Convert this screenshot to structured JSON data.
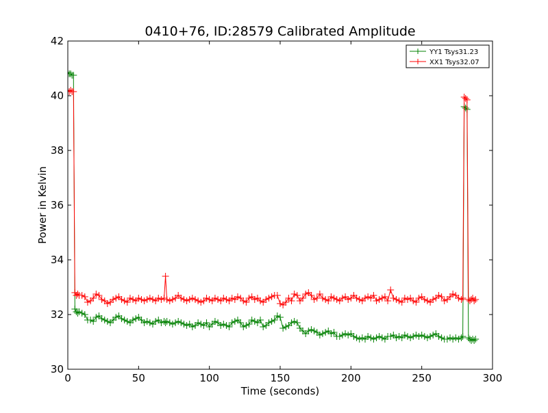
{
  "chart_data": {
    "type": "line",
    "title": "0410+76, ID:28579 Calibrated Amplitude",
    "xlabel": "Time (seconds)",
    "ylabel": "Power in Kelvin",
    "xlim": [
      0,
      300
    ],
    "ylim": [
      30,
      42
    ],
    "xticks": [
      0,
      50,
      100,
      150,
      200,
      250,
      300
    ],
    "yticks": [
      30,
      32,
      34,
      36,
      38,
      40,
      42
    ],
    "grid": false,
    "legend_position": "top-right",
    "marker": "+",
    "series": [
      {
        "name": "YY1 Tsys31.23",
        "color": "#008000",
        "x": [
          0,
          1,
          2,
          3,
          4,
          5,
          6,
          7,
          8,
          10,
          12,
          14,
          16,
          18,
          20,
          22,
          24,
          26,
          28,
          30,
          32,
          34,
          36,
          38,
          40,
          42,
          44,
          46,
          48,
          50,
          52,
          54,
          56,
          58,
          60,
          62,
          64,
          66,
          68,
          69,
          70,
          72,
          74,
          76,
          78,
          80,
          82,
          84,
          86,
          88,
          90,
          92,
          94,
          96,
          98,
          100,
          102,
          104,
          106,
          108,
          110,
          112,
          114,
          116,
          118,
          120,
          122,
          124,
          126,
          128,
          130,
          132,
          134,
          136,
          138,
          140,
          142,
          144,
          146,
          148,
          150,
          152,
          154,
          156,
          158,
          160,
          162,
          164,
          166,
          168,
          170,
          172,
          174,
          176,
          178,
          180,
          182,
          184,
          186,
          188,
          190,
          192,
          194,
          196,
          198,
          200,
          202,
          204,
          206,
          208,
          210,
          212,
          214,
          216,
          218,
          220,
          222,
          224,
          226,
          228,
          230,
          232,
          234,
          236,
          238,
          240,
          242,
          244,
          246,
          248,
          250,
          252,
          254,
          256,
          258,
          260,
          262,
          264,
          266,
          268,
          270,
          272,
          274,
          276,
          278,
          279,
          280,
          281,
          282,
          283,
          284,
          285,
          286,
          287,
          288
        ],
        "y": [
          40.85,
          40.8,
          40.8,
          40.75,
          40.75,
          32.2,
          32.1,
          32.05,
          32.1,
          32.05,
          32.0,
          31.8,
          31.8,
          31.75,
          31.9,
          31.95,
          31.85,
          31.8,
          31.75,
          31.7,
          31.8,
          31.9,
          31.95,
          31.85,
          31.8,
          31.75,
          31.7,
          31.8,
          31.85,
          31.9,
          31.8,
          31.7,
          31.75,
          31.7,
          31.65,
          31.75,
          31.8,
          31.7,
          31.75,
          31.7,
          31.75,
          31.7,
          31.65,
          31.7,
          31.75,
          31.7,
          31.65,
          31.6,
          31.65,
          31.55,
          31.6,
          31.7,
          31.65,
          31.6,
          31.7,
          31.55,
          31.65,
          31.75,
          31.7,
          31.6,
          31.65,
          31.6,
          31.55,
          31.7,
          31.75,
          31.8,
          31.7,
          31.55,
          31.6,
          31.65,
          31.8,
          31.75,
          31.7,
          31.8,
          31.55,
          31.6,
          31.7,
          31.75,
          31.8,
          31.95,
          31.9,
          31.5,
          31.55,
          31.6,
          31.7,
          31.75,
          31.7,
          31.5,
          31.4,
          31.3,
          31.4,
          31.45,
          31.4,
          31.35,
          31.25,
          31.3,
          31.35,
          31.4,
          31.3,
          31.35,
          31.2,
          31.2,
          31.25,
          31.3,
          31.25,
          31.3,
          31.2,
          31.15,
          31.1,
          31.15,
          31.1,
          31.2,
          31.15,
          31.1,
          31.15,
          31.2,
          31.15,
          31.1,
          31.2,
          31.2,
          31.25,
          31.15,
          31.2,
          31.15,
          31.25,
          31.2,
          31.15,
          31.2,
          31.25,
          31.2,
          31.25,
          31.2,
          31.15,
          31.2,
          31.25,
          31.3,
          31.2,
          31.15,
          31.1,
          31.1,
          31.15,
          31.1,
          31.15,
          31.1,
          31.15,
          31.2,
          39.6,
          39.55,
          39.5,
          31.15,
          31.1,
          31.05,
          31.1,
          31.05,
          31.1
        ]
      },
      {
        "name": "XX1 Tsys32.07",
        "color": "#ff0000",
        "x": [
          0,
          1,
          2,
          3,
          4,
          5,
          6,
          7,
          8,
          10,
          12,
          14,
          16,
          18,
          20,
          22,
          24,
          26,
          28,
          30,
          32,
          34,
          36,
          38,
          40,
          42,
          44,
          46,
          48,
          50,
          52,
          54,
          56,
          58,
          60,
          62,
          64,
          66,
          68,
          69,
          70,
          72,
          74,
          76,
          78,
          80,
          82,
          84,
          86,
          88,
          90,
          92,
          94,
          96,
          98,
          100,
          102,
          104,
          106,
          108,
          110,
          112,
          114,
          116,
          118,
          120,
          122,
          124,
          126,
          128,
          130,
          132,
          134,
          136,
          138,
          140,
          142,
          144,
          146,
          148,
          150,
          152,
          154,
          156,
          158,
          160,
          162,
          164,
          166,
          168,
          170,
          172,
          174,
          176,
          178,
          180,
          182,
          184,
          186,
          188,
          190,
          192,
          194,
          196,
          198,
          200,
          202,
          204,
          206,
          208,
          210,
          212,
          214,
          216,
          218,
          220,
          222,
          224,
          226,
          228,
          230,
          232,
          234,
          236,
          238,
          240,
          242,
          244,
          246,
          248,
          250,
          252,
          254,
          256,
          258,
          260,
          262,
          264,
          266,
          268,
          270,
          272,
          274,
          276,
          278,
          279,
          280,
          281,
          282,
          283,
          284,
          285,
          286,
          287,
          288
        ],
        "y": [
          40.2,
          40.15,
          40.2,
          40.15,
          40.15,
          32.8,
          32.7,
          32.75,
          32.7,
          32.7,
          32.65,
          32.45,
          32.5,
          32.6,
          32.75,
          32.7,
          32.55,
          32.5,
          32.4,
          32.45,
          32.55,
          32.6,
          32.65,
          32.55,
          32.5,
          32.45,
          32.6,
          32.55,
          32.5,
          32.6,
          32.55,
          32.5,
          32.55,
          32.6,
          32.55,
          32.5,
          32.6,
          32.55,
          32.6,
          33.4,
          32.55,
          32.5,
          32.55,
          32.6,
          32.7,
          32.6,
          32.55,
          32.5,
          32.55,
          32.6,
          32.55,
          32.5,
          32.45,
          32.5,
          32.6,
          32.55,
          32.5,
          32.6,
          32.55,
          32.5,
          32.6,
          32.55,
          32.5,
          32.6,
          32.55,
          32.65,
          32.6,
          32.5,
          32.45,
          32.6,
          32.65,
          32.55,
          32.6,
          32.5,
          32.45,
          32.55,
          32.6,
          32.65,
          32.7,
          32.7,
          32.4,
          32.35,
          32.45,
          32.6,
          32.5,
          32.75,
          32.7,
          32.5,
          32.6,
          32.75,
          32.8,
          32.7,
          32.55,
          32.6,
          32.75,
          32.6,
          32.55,
          32.5,
          32.65,
          32.6,
          32.55,
          32.5,
          32.6,
          32.65,
          32.55,
          32.6,
          32.7,
          32.6,
          32.55,
          32.5,
          32.6,
          32.65,
          32.6,
          32.7,
          32.5,
          32.55,
          32.6,
          32.65,
          32.5,
          32.9,
          32.6,
          32.55,
          32.5,
          32.45,
          32.6,
          32.55,
          32.6,
          32.5,
          32.45,
          32.6,
          32.65,
          32.55,
          32.5,
          32.45,
          32.55,
          32.6,
          32.7,
          32.65,
          32.5,
          32.55,
          32.65,
          32.75,
          32.7,
          32.6,
          32.55,
          32.6,
          39.95,
          39.9,
          39.85,
          32.55,
          32.5,
          32.55,
          32.6,
          32.5,
          32.55
        ]
      }
    ]
  }
}
